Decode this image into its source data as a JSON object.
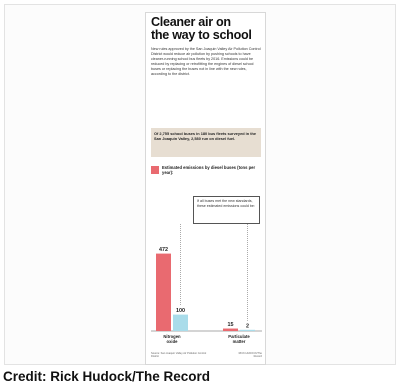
{
  "graphic": {
    "headline_line1": "Cleaner air on",
    "headline_line2": "the way to school",
    "body": "New rules approved by the San Joaquin Valley Air Pollution Control District would reduce air pollution by pushing schools to have cleaner-running school bus fleets by 2016. Emissions could be reduced by replacing or retrofitting the engines of diesel school buses or replacing the buses not in line with the new rules, according to the district.",
    "stat": "Of 2,755 school buses in 180 bus fleets surveyed in the San Joaquin Valley, 2,580 run on diesel fuel.",
    "legend": "Estimated emissions by diesel buses (tons per year):",
    "note": "If all buses met the new standards, these estimated emissions could be:",
    "source": "Source: San Joaquin Valley Air Pollution Control District",
    "artist": "RICK HUDOCK/The Record"
  },
  "credit": "Credit: Rick Hudock/The Record",
  "colors": {
    "current": "#e96a70",
    "standard": "#a9dcea",
    "stat_box": "#e7ded2"
  },
  "chart_data": {
    "type": "bar",
    "categories": [
      "Nitrogen oxide",
      "Particulate matter"
    ],
    "series": [
      {
        "name": "Estimated emissions by diesel buses (tons per year)",
        "values": [
          472,
          15
        ],
        "labels": [
          "472",
          "15"
        ]
      },
      {
        "name": "If all buses met the new standards",
        "values": [
          100,
          2
        ],
        "labels": [
          "100",
          "2"
        ]
      }
    ],
    "ylim": [
      0,
      500
    ],
    "grid": false,
    "legend": "top",
    "xlabel": "",
    "ylabel": ""
  }
}
